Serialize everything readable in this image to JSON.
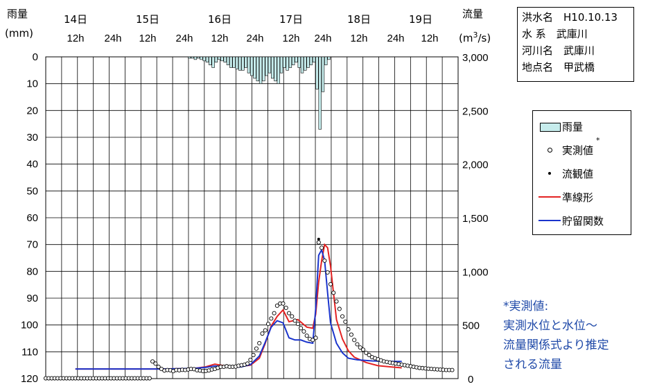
{
  "left_axis": {
    "title": "雨量",
    "unit": "(mm)",
    "ticks": [
      "0",
      "10",
      "20",
      "30",
      "40",
      "50",
      "60",
      "70",
      "80",
      "90",
      "100",
      "110",
      "120"
    ]
  },
  "right_axis": {
    "title": "流量",
    "unit_base": "(m",
    "unit_sup": "3",
    "unit_tail": "/s)",
    "ticks": [
      "3,000",
      "2,500",
      "2,000",
      "1,500",
      "1,000",
      "500",
      "0"
    ]
  },
  "date_labels": [
    "14日",
    "15日",
    "16日",
    "17日",
    "18日",
    "19日"
  ],
  "hour_labels": [
    "12h",
    "24h",
    "12h",
    "24h",
    "12h",
    "24h",
    "12h",
    "24h",
    "12h",
    "24h",
    "12h"
  ],
  "info": {
    "flood_name": "洪水名　H10.10.13",
    "system": "水 系　武庫川",
    "river": "河川名　武庫川",
    "site": "地点名　甲武橋"
  },
  "legend": {
    "rain": "雨量",
    "measured": "実測値",
    "measured_mark": "*",
    "observed": "流観値",
    "quasi_linear": "準線形",
    "storage": "貯留関数"
  },
  "note": {
    "line1": "*実測値:",
    "line2": "実測水位と水位～",
    "line3": "流量関係式より推定",
    "line4": "される流量"
  },
  "colors": {
    "rain_fill": "#c6ecec",
    "quasi_linear": "#e32222",
    "storage": "#1a34cc"
  },
  "chart_data": {
    "type": "bar+line+scatter",
    "x_unit": "hour from 1998-10-14 0h",
    "xlim": [
      0,
      139
    ],
    "y_left": {
      "label": "雨量 (mm)",
      "lim": [
        0,
        120
      ],
      "inverted": true
    },
    "y_right": {
      "label": "流量 (m3/s)",
      "lim": [
        0,
        3000
      ]
    },
    "rainfall": [
      [
        48,
        0.5
      ],
      [
        49,
        0.5
      ],
      [
        50,
        1
      ],
      [
        51,
        0.5
      ],
      [
        52,
        1
      ],
      [
        53,
        1.5
      ],
      [
        54,
        2
      ],
      [
        55,
        3
      ],
      [
        56,
        4
      ],
      [
        57,
        2
      ],
      [
        58,
        1
      ],
      [
        59,
        1.5
      ],
      [
        60,
        2
      ],
      [
        61,
        3
      ],
      [
        62,
        4
      ],
      [
        63,
        4
      ],
      [
        64,
        4.5
      ],
      [
        65,
        5
      ],
      [
        66,
        5
      ],
      [
        67,
        4
      ],
      [
        68,
        6
      ],
      [
        69,
        7
      ],
      [
        70,
        8
      ],
      [
        71,
        9
      ],
      [
        72,
        10
      ],
      [
        73,
        9
      ],
      [
        74,
        7
      ],
      [
        75,
        6
      ],
      [
        76,
        8
      ],
      [
        77,
        9
      ],
      [
        78,
        10
      ],
      [
        79,
        6
      ],
      [
        80,
        4
      ],
      [
        81,
        5
      ],
      [
        82,
        4
      ],
      [
        83,
        3
      ],
      [
        84,
        2
      ],
      [
        85,
        4
      ],
      [
        86,
        6
      ],
      [
        87,
        5
      ],
      [
        88,
        4
      ],
      [
        89,
        3
      ],
      [
        90,
        2
      ],
      [
        91,
        12
      ],
      [
        92,
        27
      ],
      [
        93,
        13
      ],
      [
        94,
        3
      ],
      [
        95,
        1
      ]
    ],
    "quasi_linear": [
      [
        10,
        90
      ],
      [
        30,
        90
      ],
      [
        40,
        90
      ],
      [
        44,
        92
      ],
      [
        50,
        95
      ],
      [
        54,
        110
      ],
      [
        57,
        135
      ],
      [
        60,
        120
      ],
      [
        63,
        112
      ],
      [
        66,
        115
      ],
      [
        69,
        125
      ],
      [
        72,
        190
      ],
      [
        74,
        330
      ],
      [
        76,
        490
      ],
      [
        78,
        580
      ],
      [
        80,
        640
      ],
      [
        82,
        530
      ],
      [
        85,
        550
      ],
      [
        88,
        480
      ],
      [
        90,
        470
      ],
      [
        91,
        600
      ],
      [
        92,
        900
      ],
      [
        93,
        1100
      ],
      [
        94,
        1250
      ],
      [
        95,
        1220
      ],
      [
        96,
        1050
      ],
      [
        97,
        800
      ],
      [
        98,
        550
      ],
      [
        100,
        370
      ],
      [
        102,
        260
      ],
      [
        104,
        200
      ],
      [
        108,
        150
      ],
      [
        112,
        120
      ],
      [
        116,
        110
      ],
      [
        120,
        100
      ]
    ],
    "storage_function": [
      [
        10,
        90
      ],
      [
        30,
        90
      ],
      [
        40,
        90
      ],
      [
        44,
        92
      ],
      [
        50,
        95
      ],
      [
        54,
        105
      ],
      [
        57,
        118
      ],
      [
        60,
        112
      ],
      [
        63,
        105
      ],
      [
        66,
        110
      ],
      [
        69,
        130
      ],
      [
        72,
        210
      ],
      [
        74,
        340
      ],
      [
        76,
        480
      ],
      [
        78,
        540
      ],
      [
        80,
        520
      ],
      [
        82,
        380
      ],
      [
        84,
        360
      ],
      [
        86,
        360
      ],
      [
        88,
        340
      ],
      [
        90,
        330
      ],
      [
        91,
        650
      ],
      [
        92,
        1150
      ],
      [
        93,
        1200
      ],
      [
        94,
        1100
      ],
      [
        95,
        800
      ],
      [
        96,
        520
      ],
      [
        98,
        330
      ],
      [
        100,
        240
      ],
      [
        102,
        190
      ],
      [
        105,
        175
      ],
      [
        110,
        165
      ],
      [
        115,
        160
      ],
      [
        120,
        160
      ]
    ],
    "measured": [
      [
        0,
        3
      ],
      [
        1,
        3
      ],
      [
        2,
        3
      ],
      [
        3,
        3
      ],
      [
        4,
        3
      ],
      [
        5,
        3
      ],
      [
        6,
        3
      ],
      [
        7,
        3
      ],
      [
        8,
        3
      ],
      [
        9,
        3
      ],
      [
        10,
        3
      ],
      [
        11,
        3
      ],
      [
        12,
        3
      ],
      [
        13,
        3
      ],
      [
        14,
        3
      ],
      [
        15,
        3
      ],
      [
        16,
        3
      ],
      [
        17,
        3
      ],
      [
        18,
        3
      ],
      [
        19,
        3
      ],
      [
        20,
        3
      ],
      [
        21,
        3
      ],
      [
        22,
        3
      ],
      [
        23,
        3
      ],
      [
        24,
        3
      ],
      [
        25,
        3
      ],
      [
        26,
        3
      ],
      [
        27,
        3
      ],
      [
        28,
        3
      ],
      [
        29,
        3
      ],
      [
        30,
        3
      ],
      [
        31,
        3
      ],
      [
        32,
        3
      ],
      [
        33,
        3
      ],
      [
        34,
        3
      ],
      [
        35,
        3
      ],
      [
        36,
        160
      ],
      [
        37,
        140
      ],
      [
        38,
        110
      ],
      [
        39,
        90
      ],
      [
        40,
        75
      ],
      [
        41,
        80
      ],
      [
        42,
        78
      ],
      [
        43,
        70
      ],
      [
        44,
        80
      ],
      [
        45,
        78
      ],
      [
        46,
        82
      ],
      [
        47,
        80
      ],
      [
        48,
        85
      ],
      [
        49,
        90
      ],
      [
        50,
        88
      ],
      [
        51,
        78
      ],
      [
        52,
        75
      ],
      [
        53,
        70
      ],
      [
        54,
        72
      ],
      [
        55,
        76
      ],
      [
        56,
        85
      ],
      [
        57,
        90
      ],
      [
        58,
        100
      ],
      [
        59,
        110
      ],
      [
        60,
        110
      ],
      [
        61,
        115
      ],
      [
        62,
        110
      ],
      [
        63,
        110
      ],
      [
        64,
        112
      ],
      [
        65,
        120
      ],
      [
        66,
        125
      ],
      [
        67,
        130
      ],
      [
        68,
        140
      ],
      [
        69,
        175
      ],
      [
        70,
        220
      ],
      [
        71,
        280
      ],
      [
        72,
        330
      ],
      [
        73,
        420
      ],
      [
        74,
        450
      ],
      [
        75,
        510
      ],
      [
        76,
        560
      ],
      [
        77,
        610
      ],
      [
        78,
        680
      ],
      [
        79,
        700
      ],
      [
        80,
        700
      ],
      [
        81,
        660
      ],
      [
        82,
        610
      ],
      [
        83,
        580
      ],
      [
        84,
        540
      ],
      [
        85,
        510
      ],
      [
        86,
        470
      ],
      [
        87,
        440
      ],
      [
        88,
        400
      ],
      [
        89,
        370
      ],
      [
        90,
        360
      ],
      [
        91,
        380
      ],
      [
        92,
        1270
      ],
      [
        93,
        1220
      ],
      [
        94,
        1100
      ],
      [
        95,
        990
      ],
      [
        96,
        880
      ],
      [
        97,
        800
      ],
      [
        98,
        720
      ],
      [
        99,
        650
      ],
      [
        100,
        580
      ],
      [
        101,
        530
      ],
      [
        102,
        460
      ],
      [
        103,
        410
      ],
      [
        104,
        360
      ],
      [
        105,
        320
      ],
      [
        106,
        290
      ],
      [
        107,
        270
      ],
      [
        108,
        240
      ],
      [
        109,
        220
      ],
      [
        110,
        200
      ],
      [
        111,
        190
      ],
      [
        112,
        180
      ],
      [
        113,
        170
      ],
      [
        114,
        160
      ],
      [
        115,
        155
      ],
      [
        116,
        150
      ],
      [
        117,
        145
      ],
      [
        118,
        140
      ],
      [
        119,
        135
      ],
      [
        120,
        130
      ],
      [
        121,
        125
      ],
      [
        122,
        120
      ],
      [
        123,
        115
      ],
      [
        124,
        110
      ],
      [
        125,
        105
      ],
      [
        126,
        100
      ],
      [
        127,
        98
      ],
      [
        128,
        95
      ],
      [
        129,
        92
      ],
      [
        130,
        90
      ],
      [
        131,
        88
      ],
      [
        132,
        86
      ],
      [
        133,
        84
      ],
      [
        134,
        82
      ],
      [
        135,
        80
      ],
      [
        136,
        80
      ],
      [
        137,
        80
      ]
    ],
    "observed": [
      [
        92,
        1300
      ]
    ]
  }
}
